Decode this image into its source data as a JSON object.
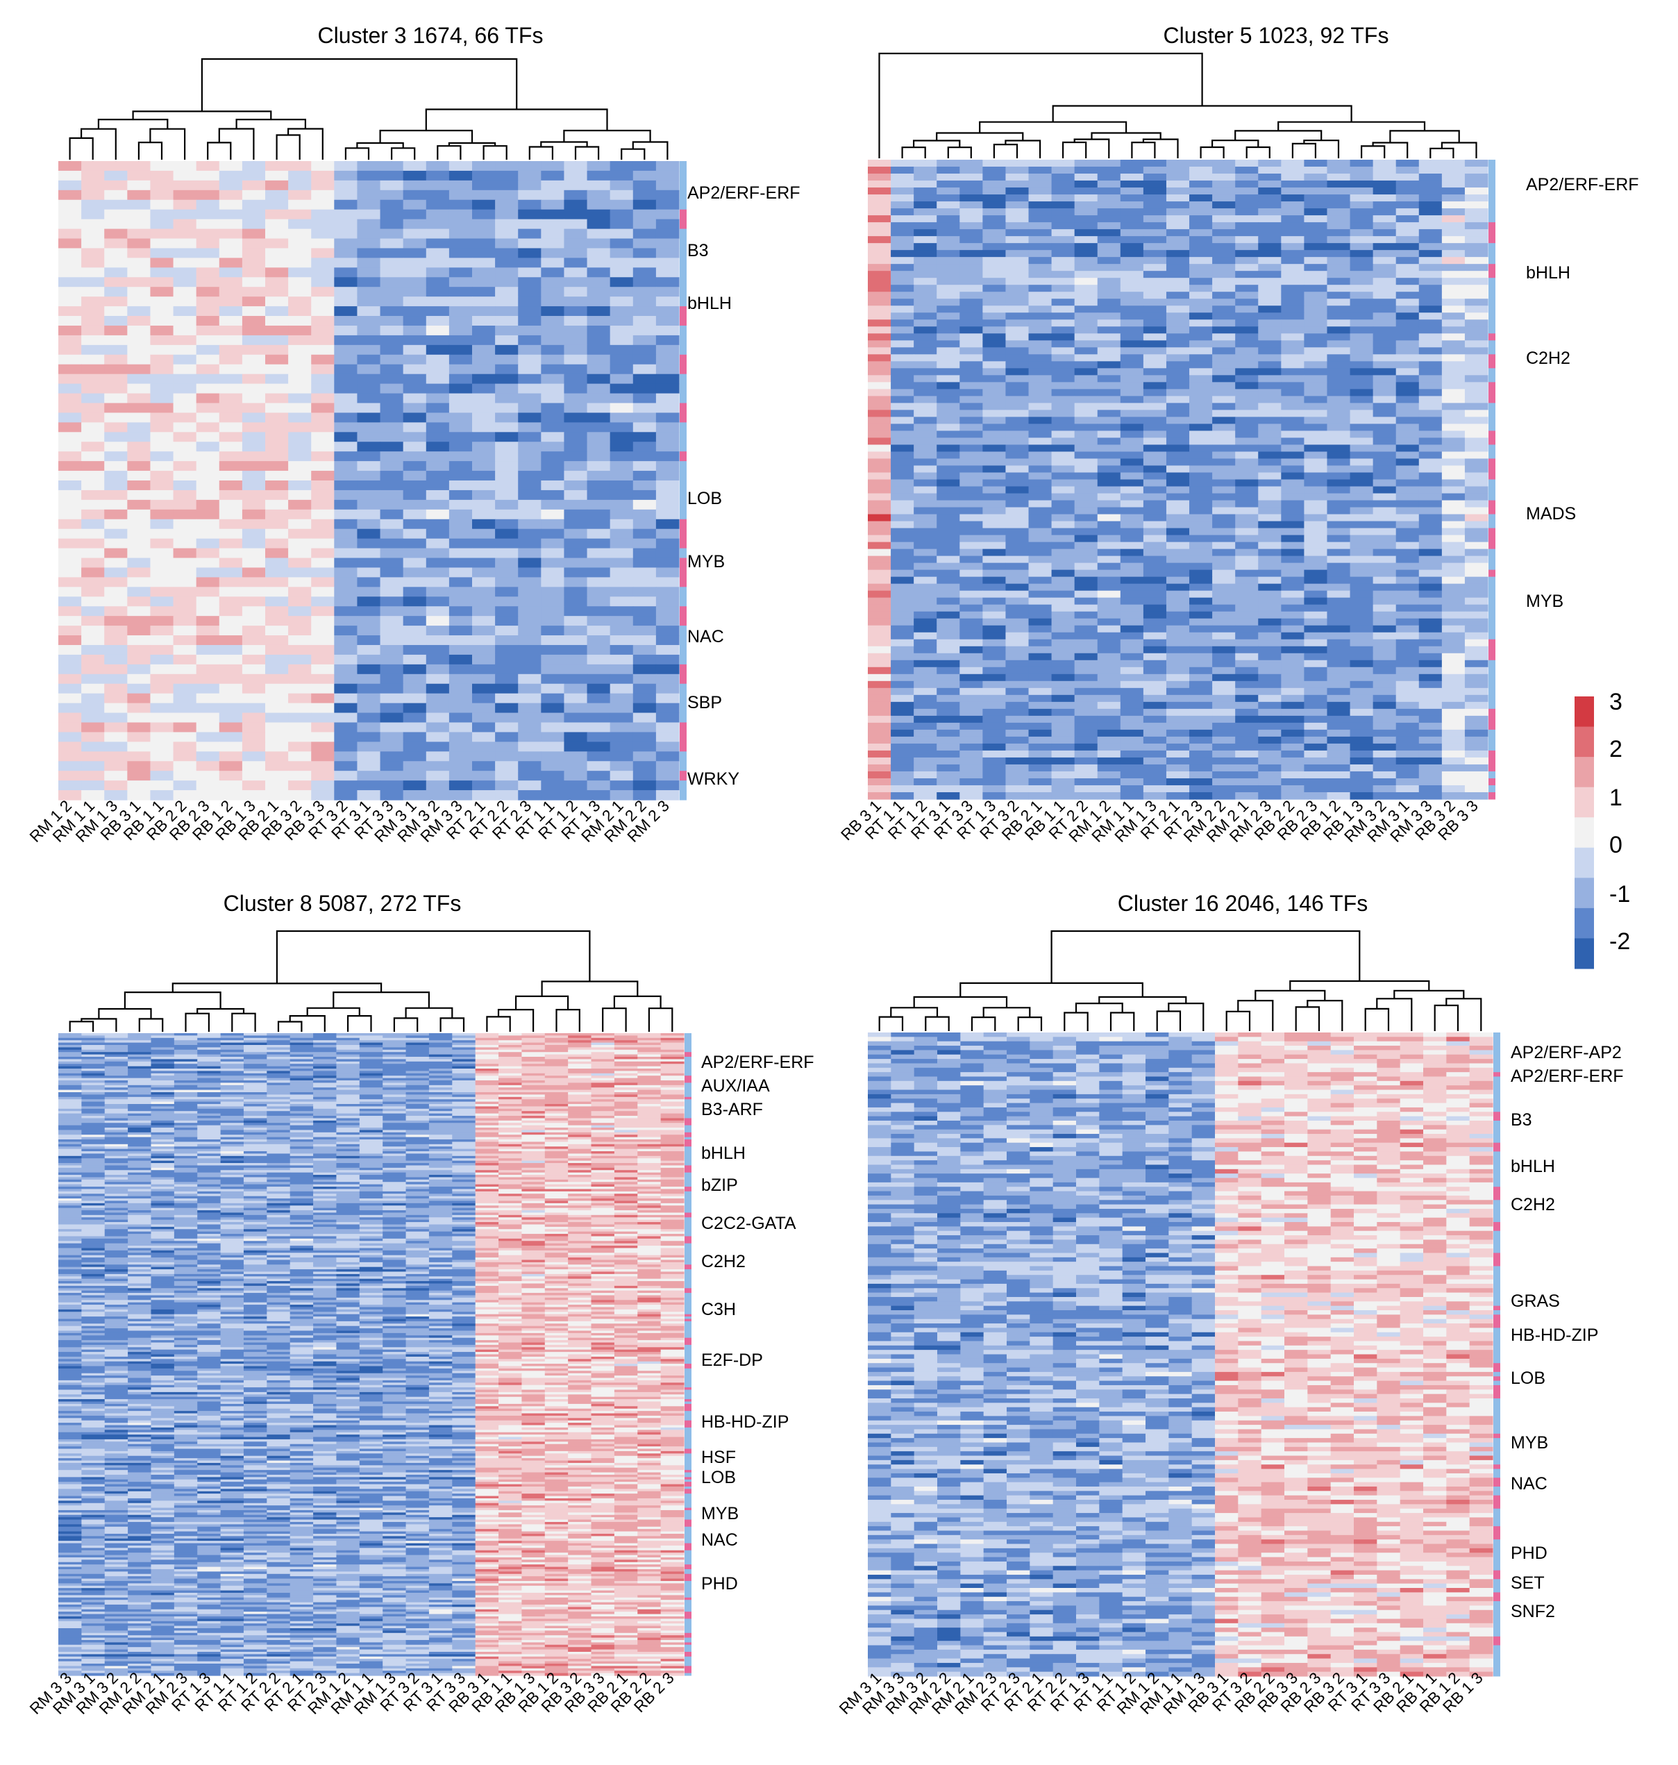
{
  "chart_data": [
    {
      "type": "heatmap",
      "title": "Cluster 3  1674, 66 TFs",
      "n_rows": 66,
      "samples": [
        "RM 1 2",
        "RM 1 1",
        "RM 1 3",
        "RB 3 1",
        "RB 1 1",
        "RB 2 2",
        "RB 2 3",
        "RB 1 2",
        "RB 1 3",
        "RB 2 1",
        "RB 3 2",
        "RB 3 3",
        "RT 3 2",
        "RT 3 1",
        "RT 3 3",
        "RM 3 1",
        "RM 3 2",
        "RM 3 3",
        "RT 2 1",
        "RT 2 2",
        "RT 2 3",
        "RT 1 1",
        "RT 1 2",
        "RT 1 3",
        "RM 2 1",
        "RM 2 2",
        "RM 2 3"
      ],
      "tf_families": [
        "AP2/ERF-ERF",
        "B3",
        "bHLH",
        "LOB",
        "MYB",
        "NAC",
        "SBP",
        "WRKY"
      ],
      "column_groups": [
        {
          "from": "RM 1 2",
          "to": "RB 3 3",
          "level": 0.6
        },
        {
          "from": "RT 3 2",
          "to": "RM 2 3",
          "level": -1.2
        }
      ],
      "dendrogram_split_after": "RB 3 3"
    },
    {
      "type": "heatmap",
      "title": "Cluster 5  1023, 92 TFs",
      "n_rows": 92,
      "samples": [
        "RB 3 1",
        "RT 1 1",
        "RT 1 2",
        "RT 3 1",
        "RT 3 3",
        "RT 1 3",
        "RT 3 2",
        "RB 2 1",
        "RB 1 1",
        "RT 2 2",
        "RM 1 2",
        "RM 1 1",
        "RM 1 3",
        "RT 2 1",
        "RT 2 3",
        "RM 2 2",
        "RM 2 1",
        "RM 2 3",
        "RB 2 2",
        "RB 2 3",
        "RB 1 2",
        "RB 1 3",
        "RM 3 2",
        "RM 3 1",
        "RM 3 3",
        "RB 3 2",
        "RB 3 3"
      ],
      "tf_families": [
        "AP2/ERF-ERF",
        "bHLH",
        "C2H2",
        "MADS",
        "MYB"
      ],
      "column_groups": [
        {
          "from": "RB 3 1",
          "to": "RB 3 1",
          "level": 1.6
        },
        {
          "from": "RT 1 1",
          "to": "RM 3 3",
          "level": -1.3
        },
        {
          "from": "RB 3 2",
          "to": "RB 3 3",
          "level": -0.4
        }
      ],
      "dendrogram_split_after": "RB 3 1"
    },
    {
      "type": "heatmap",
      "title": "Cluster 8  5087, 272 TFs",
      "n_rows": 272,
      "samples": [
        "RM 3 3",
        "RM 3 1",
        "RM 3 2",
        "RM 2 2",
        "RM 2 1",
        "RM 2 3",
        "RT 1 3",
        "RT 1 1",
        "RT 1 2",
        "RT 2 2",
        "RT 2 1",
        "RT 2 3",
        "RM 1 2",
        "RM 1 1",
        "RM 1 3",
        "RT 3 2",
        "RT 3 1",
        "RT 3 3",
        "RB 3 1",
        "RB 1 1",
        "RB 1 3",
        "RB 1 2",
        "RB 3 2",
        "RB 3 3",
        "RB 2 1",
        "RB 2 2",
        "RB 2 3"
      ],
      "tf_families": [
        "AP2/ERF-ERF",
        "AUX/IAA",
        "B3-ARF",
        "bHLH",
        "bZIP",
        "C2C2-GATA",
        "C2H2",
        "C3H",
        "E2F-DP",
        "HB-HD-ZIP",
        "HSF",
        "LOB",
        "MYB",
        "NAC",
        "PHD"
      ],
      "column_groups": [
        {
          "from": "RM 3 3",
          "to": "RT 3 3",
          "level": -1.2
        },
        {
          "from": "RB 3 1",
          "to": "RB 2 3",
          "level": 1.2
        }
      ],
      "dendrogram_split_after": "RT 3 3"
    },
    {
      "type": "heatmap",
      "title": "Cluster 16  2046, 146 TFs",
      "n_rows": 146,
      "samples": [
        "RM 3 1",
        "RM 3 3",
        "RM 3 2",
        "RM 2 2",
        "RM 2 1",
        "RM 2 3",
        "RT 2 3",
        "RT 2 1",
        "RT 2 2",
        "RT 1 3",
        "RT 1 1",
        "RT 1 2",
        "RM 1 2",
        "RM 1 1",
        "RM 1 3",
        "RB 3 1",
        "RT 3 2",
        "RB 2 2",
        "RB 3 3",
        "RB 2 3",
        "RB 3 2",
        "RT 3 1",
        "RT 3 3",
        "RB 2 1",
        "RB 1 1",
        "RB 1 2",
        "RB 1 3"
      ],
      "tf_families": [
        "AP2/ERF-AP2",
        "AP2/ERF-ERF",
        "B3",
        "bHLH",
        "C2H2",
        "GRAS",
        "HB-HD-ZIP",
        "LOB",
        "MYB",
        "NAC",
        "PHD",
        "SET",
        "SNF2"
      ],
      "column_groups": [
        {
          "from": "RM 3 1",
          "to": "RM 1 3",
          "level": -1.1
        },
        {
          "from": "RB 3 1",
          "to": "RB 1 3",
          "level": 1.0
        }
      ],
      "dendrogram_split_after": "RM 1 3"
    }
  ],
  "colorbar": {
    "ticks": [
      "3",
      "2",
      "1",
      "0",
      "-1",
      "-2"
    ],
    "range": [
      -2.5,
      3.2
    ],
    "colors": [
      "#2f62b0",
      "#5d86cc",
      "#97b1e0",
      "#c9d6ef",
      "#f2f2f2",
      "#f3cfd2",
      "#eaa3a8",
      "#e06e75",
      "#d33a42"
    ]
  },
  "colors": {
    "family_bar_blue": "#8fbde8",
    "family_bar_pink": "#e8679a",
    "dendrogram": "#000000"
  }
}
